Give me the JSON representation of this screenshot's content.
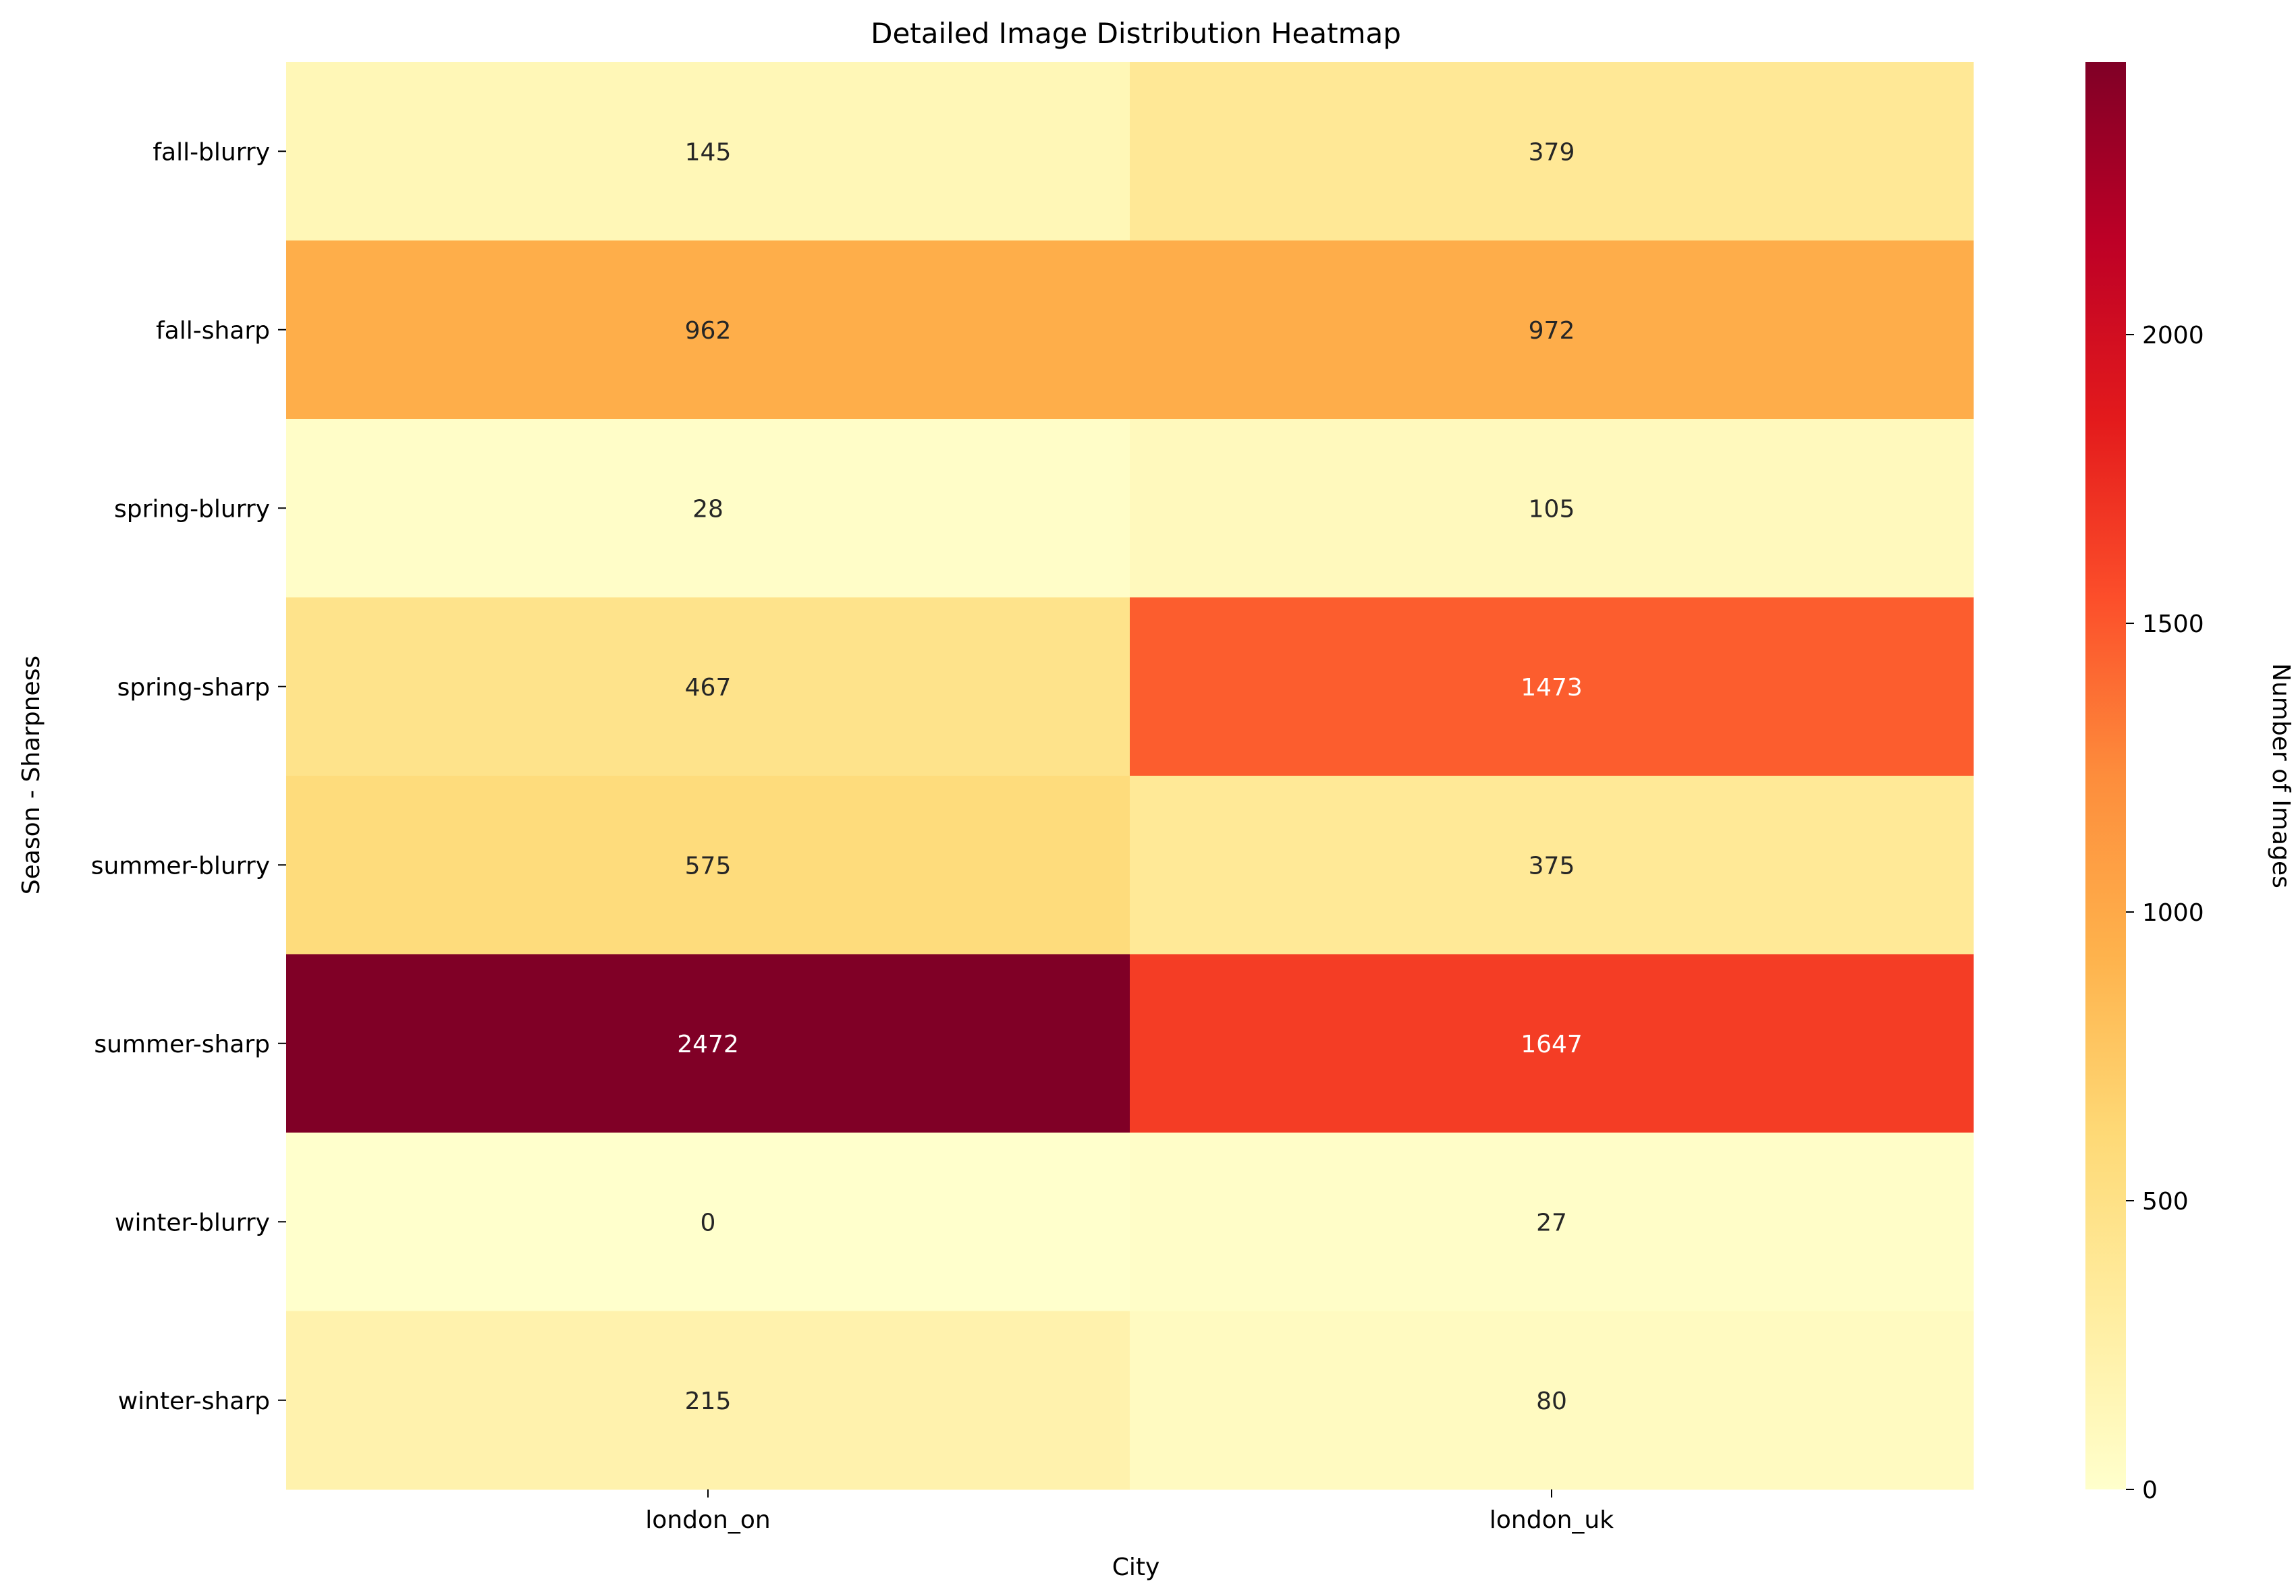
{
  "chart_data": {
    "type": "heatmap",
    "title": "Detailed Image Distribution Heatmap",
    "xlabel": "City",
    "ylabel": "Season - Sharpness",
    "x_categories": [
      "london_on",
      "london_uk"
    ],
    "y_categories": [
      "fall-blurry",
      "fall-sharp",
      "spring-blurry",
      "spring-sharp",
      "summer-blurry",
      "summer-sharp",
      "winter-blurry",
      "winter-sharp"
    ],
    "values": [
      [
        145,
        379
      ],
      [
        962,
        972
      ],
      [
        28,
        105
      ],
      [
        467,
        1473
      ],
      [
        575,
        375
      ],
      [
        2472,
        1647
      ],
      [
        0,
        27
      ],
      [
        215,
        80
      ]
    ],
    "colorbar": {
      "label": "Number of Images",
      "min": 0,
      "max": 2472,
      "ticks": [
        0,
        500,
        1000,
        1500,
        2000
      ],
      "colormap": "YlOrRd"
    }
  }
}
